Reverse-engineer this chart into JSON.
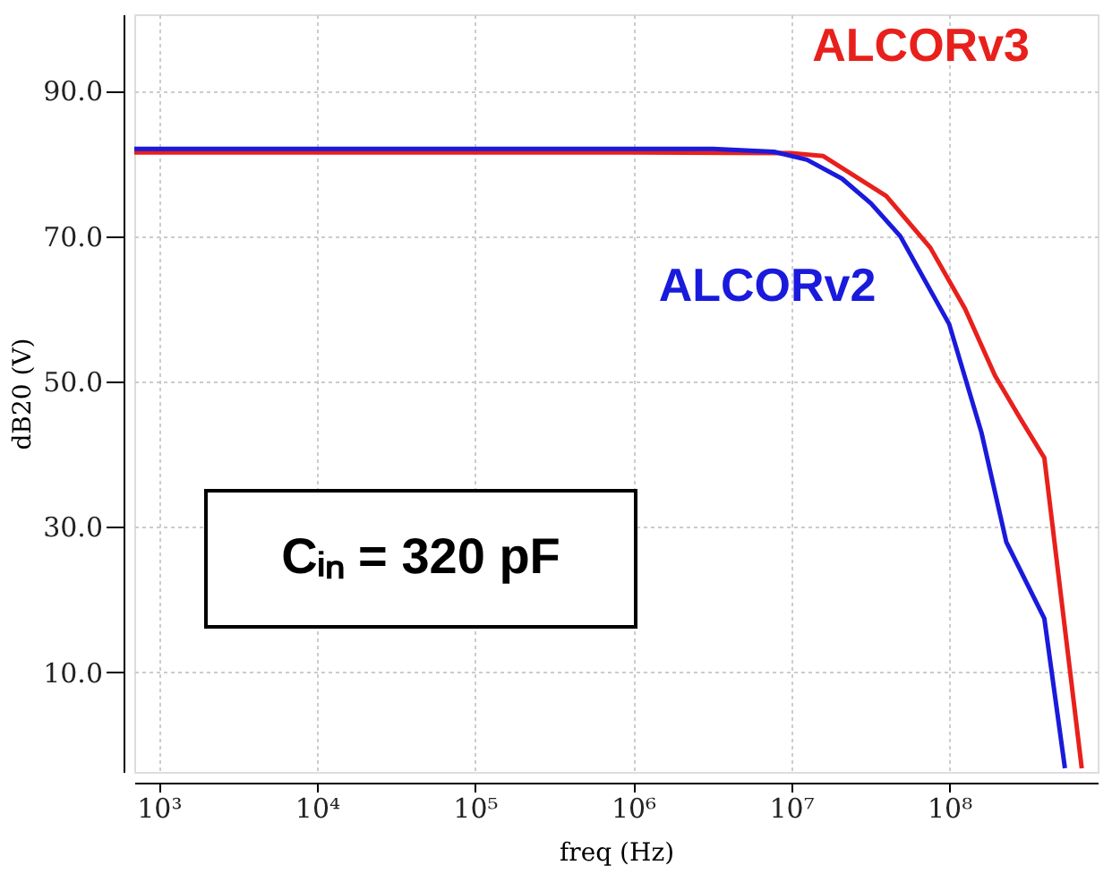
{
  "chart_data": {
    "type": "line",
    "xlabel": "freq (Hz)",
    "ylabel": "dB20 (V)",
    "log": "x",
    "xlim": [
      700,
      870000000
    ],
    "ylim": [
      -3.7,
      100.5
    ],
    "xticks": [
      {
        "value": 1000,
        "label": "10³"
      },
      {
        "value": 10000,
        "label": "10⁴"
      },
      {
        "value": 100000,
        "label": "10⁵"
      },
      {
        "value": 1000000,
        "label": "10⁶"
      },
      {
        "value": 10000000,
        "label": "10⁷"
      },
      {
        "value": 100000000,
        "label": "10⁸"
      }
    ],
    "yticks": [
      {
        "value": 10,
        "label": "10.0"
      },
      {
        "value": 30,
        "label": "30.0"
      },
      {
        "value": 50,
        "label": "50.0"
      },
      {
        "value": 70,
        "label": "70.0"
      },
      {
        "value": 90,
        "label": "90.0"
      }
    ],
    "grid": true,
    "legend": false,
    "marker": "none",
    "line_style": "solid",
    "annotations": [
      "Cᵢₙ = 320 pF"
    ],
    "series": [
      {
        "name": "ALCORv3",
        "color": "#e8201c",
        "x": [
          700,
          1000000,
          10000000,
          16000000,
          40000000,
          76000000,
          126000000,
          195000000,
          280000000,
          400000000,
          690000000
        ],
        "values": [
          81.5,
          81.5,
          81.4,
          81.0,
          75.5,
          68.4,
          60.0,
          50.8,
          45.0,
          39.5,
          -3.2
        ]
      },
      {
        "name": "ALCORv2",
        "color": "#1a1adc",
        "x": [
          700,
          3200000,
          7800000,
          12600000,
          21000000,
          32000000,
          49000000,
          100000000,
          160000000,
          230000000,
          400000000,
          540000000
        ],
        "values": [
          82.0,
          82.0,
          81.6,
          80.5,
          77.9,
          74.5,
          70.0,
          57.9,
          43.0,
          27.9,
          17.4,
          -3.2
        ]
      }
    ]
  }
}
